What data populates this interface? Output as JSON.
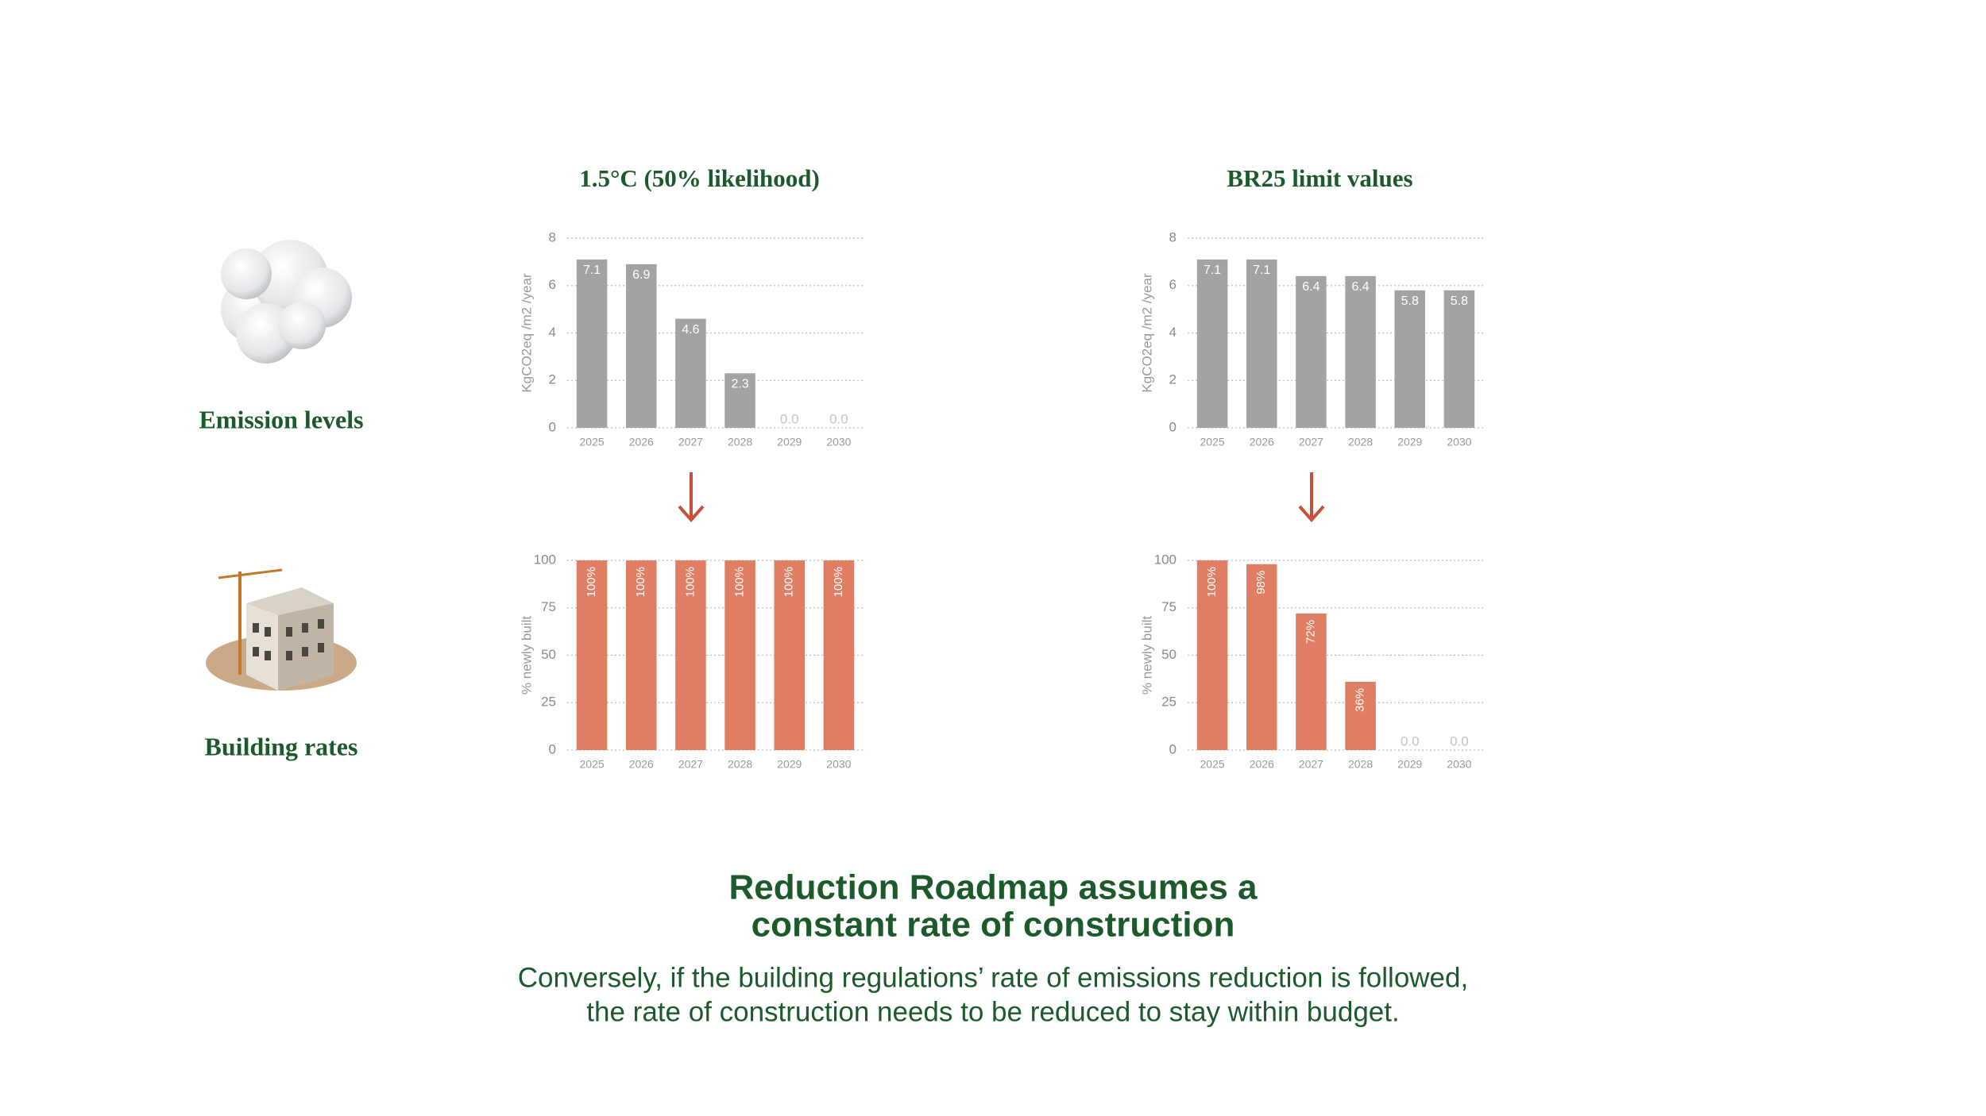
{
  "chart_data": [
    {
      "type": "bar",
      "title": "1.5°C (50% likelihood)",
      "y_label": "KgCO2eq /m2 /year",
      "categories": [
        "2025",
        "2026",
        "2027",
        "2028",
        "2029",
        "2030"
      ],
      "values": [
        7.1,
        6.9,
        4.6,
        2.3,
        0,
        0
      ],
      "value_labels": [
        "7.1",
        "6.9",
        "4.6",
        "2.3",
        "0.0",
        "0.0"
      ],
      "color": "#a3a3a5",
      "ylim": [
        0,
        8
      ],
      "yticks": [
        0,
        2,
        4,
        6,
        8
      ],
      "grid": true
    },
    {
      "type": "bar",
      "title": "BR25 limit values",
      "y_label": "KgCO2eq /m2 /year",
      "categories": [
        "2025",
        "2026",
        "2027",
        "2028",
        "2029",
        "2030"
      ],
      "values": [
        7.1,
        7.1,
        6.4,
        6.4,
        5.8,
        5.8
      ],
      "color": "#a3a3a5",
      "ylim": [
        0,
        8
      ],
      "yticks": [
        0,
        2,
        4,
        6,
        8
      ],
      "grid": true
    },
    {
      "type": "bar",
      "y_label": "% newly built",
      "categories": [
        "2025",
        "2026",
        "2027",
        "2028",
        "2029",
        "2030"
      ],
      "values": [
        100,
        100,
        100,
        100,
        100,
        100
      ],
      "value_labels": [
        "100%",
        "100%",
        "100%",
        "100%",
        "100%",
        "100%"
      ],
      "color": "#e07e64",
      "ylim": [
        0,
        100
      ],
      "yticks": [
        0,
        25,
        50,
        75,
        100
      ],
      "grid": true
    },
    {
      "type": "bar",
      "y_label": "% newly built",
      "categories": [
        "2025",
        "2026",
        "2027",
        "2028",
        "2029",
        "2030"
      ],
      "values": [
        100,
        98,
        72,
        36,
        0,
        0
      ],
      "value_labels": [
        "100%",
        "98%",
        "72%",
        "36%",
        "0.0",
        "0.0"
      ],
      "color": "#e07e64",
      "ylim": [
        0,
        100
      ],
      "yticks": [
        0,
        25,
        50,
        75,
        100
      ],
      "grid": true
    }
  ],
  "rows": [
    "Emission levels",
    "Building rates"
  ],
  "headline": [
    "Reduction Roadmap assumes a",
    "constant rate of construction"
  ],
  "body": [
    "Conversely, if the building regulations’ rate of emissions reduction is followed,",
    "the rate of construction needs to be reduced to stay within budget."
  ]
}
